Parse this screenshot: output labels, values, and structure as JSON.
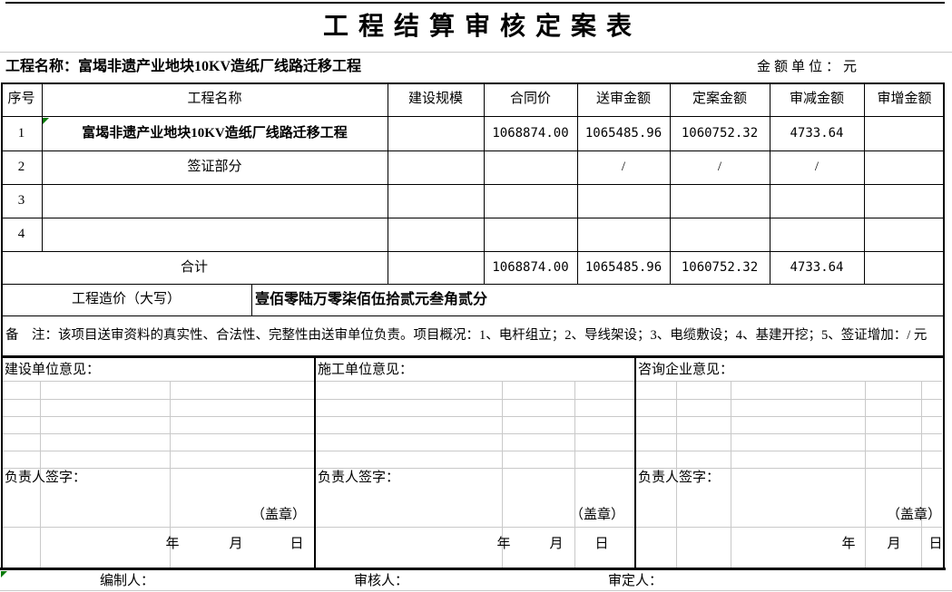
{
  "title": "工程结算审核定案表",
  "meta": {
    "project_label": "工程名称：富堨非遗产业地块10KV造纸厂线路迁移工程",
    "unit_label": "金额单位：元"
  },
  "table": {
    "headers": [
      "序号",
      "工程名称",
      "建设规模",
      "合同价",
      "送审金额",
      "定案金额",
      "审减金额",
      "审增金额"
    ],
    "rows": [
      {
        "no": "1",
        "name": "富堨非遗产业地块10KV造纸厂线路迁移工程",
        "scale": "",
        "contract": "1068874.00",
        "submitted": "1065485.96",
        "finalized": "1060752.32",
        "reduced": "4733.64",
        "increased": ""
      },
      {
        "no": "2",
        "name": "签证部分",
        "scale": "",
        "contract": "",
        "submitted": "/",
        "finalized": "/",
        "reduced": "/",
        "increased": ""
      },
      {
        "no": "3",
        "name": "",
        "scale": "",
        "contract": "",
        "submitted": "",
        "finalized": "",
        "reduced": "",
        "increased": ""
      },
      {
        "no": "4",
        "name": "",
        "scale": "",
        "contract": "",
        "submitted": "",
        "finalized": "",
        "reduced": "",
        "increased": ""
      }
    ],
    "total": {
      "label": "合计",
      "contract": "1068874.00",
      "submitted": "1065485.96",
      "finalized": "1060752.32",
      "reduced": "4733.64",
      "increased": ""
    },
    "words": {
      "label": "工程造价（大写）",
      "value": "壹佰零陆万零柒佰伍拾贰元叁角贰分"
    },
    "remark": "备　注：该项目送审资料的真实性、合法性、完整性由送审单位负责。项目概况：1、电杆组立；2、导线架设；3、电缆敷设；4、基建开挖；5、签证增加：/ 元"
  },
  "opinions": [
    {
      "title": "建设单位意见：",
      "sign_label": "负责人签字：",
      "seal": "（盖章）",
      "year": "年",
      "month": "月",
      "day": "日"
    },
    {
      "title": "施工单位意见：",
      "sign_label": "负责人签字：",
      "seal": "（盖章）",
      "year": "年",
      "month": "月",
      "day": "日"
    },
    {
      "title": "咨询企业意见：",
      "sign_label": "负责人签字：",
      "seal": "（盖章）",
      "year": "年",
      "month": "月",
      "day": "日"
    }
  ],
  "footer": {
    "preparer": "编制人：",
    "reviewer": "审核人：",
    "approver": "审定人："
  }
}
